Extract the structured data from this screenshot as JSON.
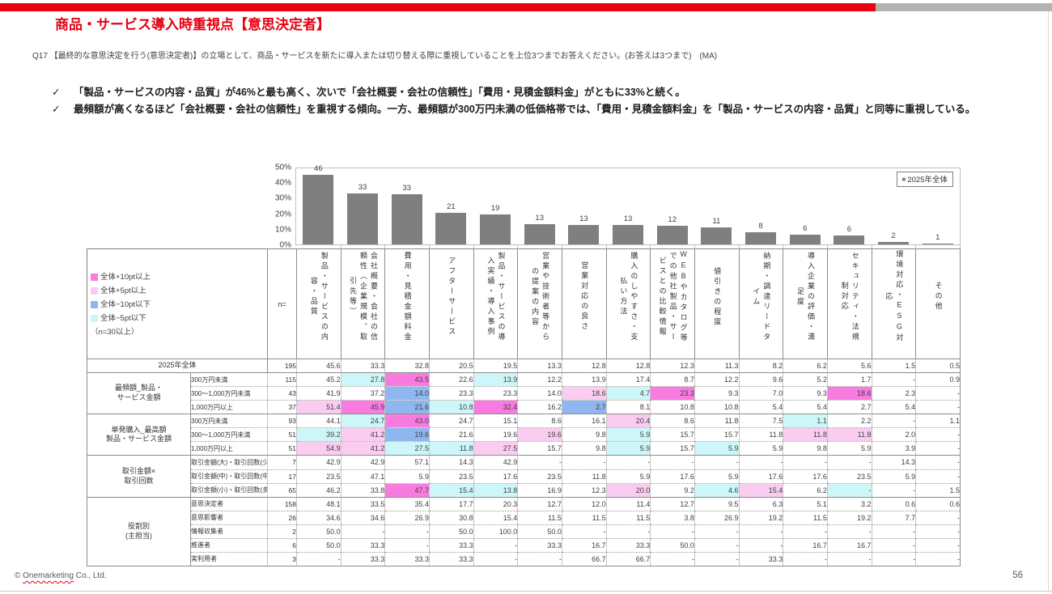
{
  "header": {
    "title": "商品・サービス導入時重視点【意思決定者】",
    "question": "Q17 【最終的な意思決定を行う(意思決定者)】の立場として、商品・サービスを新たに導入または切り替える際に重視していることを上位3つまでお答えください。(お答えは3つまで)　(MA)",
    "check_mark": "✓",
    "bullets": [
      "「製品・サービスの内容・品質」が46%と最も高く、次いで「会社概要・会社の信頼性」「費用・見積金額料金」がともに33%と続く。",
      "最頻額が高くなるほど「会社概要・会社の信頼性」を重視する傾向。一方、最頻額が300万円未満の低価格帯では、「費用・見積金額料金」を「製品・サービスの内容・品質」と同等に重視している。"
    ]
  },
  "chart_data": {
    "type": "bar",
    "title": "",
    "categories": [
      "製品・サービスの内容・品質",
      "会社概要・会社の信頼性（企業規模、取引先等）",
      "費用・見積金額料金",
      "アフターサービス",
      "製品・サービスの導入実績・導入事例",
      "営業や技術者等からの提案の内容",
      "営業対応の良さ",
      "購入のしやすさ・支払い方法",
      "WEBやカタログ等での他社製品・サービスとの比較情報",
      "値引きの程度",
      "納期・調達リードタイム",
      "導入企業の評価・満足度",
      "セキュリティ・法規制対応",
      "環境対応・ESG対応",
      "その他"
    ],
    "values": [
      45.6,
      33.3,
      32.8,
      20.5,
      19.5,
      13.3,
      12.8,
      12.8,
      12.3,
      11.3,
      8.2,
      6.2,
      5.6,
      1.5,
      0.5
    ],
    "labels": [
      "46",
      "33",
      "33",
      "21",
      "19",
      "13",
      "13",
      "13",
      "12",
      "11",
      "8",
      "6",
      "6",
      "2",
      "1"
    ],
    "xlabel": "",
    "ylabel": "",
    "ylim": [
      0,
      50
    ],
    "yticks": [
      "50%",
      "40%",
      "30%",
      "20%",
      "10%",
      "0%"
    ],
    "grid": false,
    "legend": "2025年全体",
    "legend_position": "top-right",
    "bar_color": "#7F7F7F"
  },
  "pt_legend": {
    "items": [
      {
        "label": "全体+10pt以上",
        "color": "#F87CE0"
      },
      {
        "label": "全体+5pt以上",
        "color": "#FACCF0"
      },
      {
        "label": "全体−10pt以下",
        "color": "#90B6F0"
      },
      {
        "label": "全体−5pt以下",
        "color": "#CDF6F8"
      }
    ],
    "note": "（n=30以上）"
  },
  "table": {
    "n_header": "n=",
    "columns": [
      "製品・サービスの内容・品質",
      "会社概要・会社の信頼性（企業規模、取引先等）",
      "費用・見積金額料金",
      "アフターサービス",
      "製品・サービスの導入実績・導入事例",
      "営業や技術者等からの提案の内容",
      "営業対応の良さ",
      "購入のしやすさ・支払い方法",
      "WEBやカタログ等での他社製品・サービスとの比較情報",
      "値引きの程度",
      "納期・調達リードタイム",
      "導入企業の評価・満足度",
      "セキュリティ・法規制対応",
      "環境対応・ESG対応",
      "その他"
    ],
    "overall": {
      "label": "2025年全体",
      "n": 195,
      "values": [
        45.6,
        33.3,
        32.8,
        20.5,
        19.5,
        13.3,
        12.8,
        12.8,
        12.3,
        11.3,
        8.2,
        6.2,
        5.6,
        1.5,
        0.5
      ]
    },
    "groups": [
      {
        "label": "最頻額_製品・\nサービス金額",
        "rows": [
          {
            "label": "300万円未満",
            "n": 115,
            "values": [
              45.2,
              27.8,
              43.5,
              22.6,
              13.9,
              12.2,
              13.9,
              17.4,
              8.7,
              12.2,
              9.6,
              5.2,
              1.7,
              null,
              0.9
            ]
          },
          {
            "label": "300〜1,000万円未満",
            "n": 43,
            "values": [
              41.9,
              37.2,
              14.0,
              23.3,
              23.3,
              14.0,
              18.6,
              4.7,
              23.3,
              9.3,
              7.0,
              9.3,
              18.6,
              2.3,
              null
            ]
          },
          {
            "label": "1,000万円以上",
            "n": 37,
            "values": [
              51.4,
              45.9,
              21.6,
              10.8,
              32.4,
              16.2,
              2.7,
              8.1,
              10.8,
              10.8,
              5.4,
              5.4,
              2.7,
              5.4,
              null
            ]
          }
        ]
      },
      {
        "label": "単発購入_最高額\n製品・サービス金額",
        "rows": [
          {
            "label": "300万円未満",
            "n": 93,
            "values": [
              44.1,
              24.7,
              43.0,
              24.7,
              15.1,
              8.6,
              16.1,
              20.4,
              8.6,
              11.8,
              7.5,
              1.1,
              2.2,
              null,
              1.1
            ]
          },
          {
            "label": "300〜1,000万円未満",
            "n": 51,
            "values": [
              39.2,
              41.2,
              19.6,
              21.6,
              19.6,
              19.6,
              9.8,
              5.9,
              15.7,
              15.7,
              11.8,
              11.8,
              11.8,
              2.0,
              null
            ]
          },
          {
            "label": "1,000万円以上",
            "n": 51,
            "values": [
              54.9,
              41.2,
              27.5,
              11.8,
              27.5,
              15.7,
              9.8,
              5.9,
              15.7,
              5.9,
              5.9,
              9.8,
              5.9,
              3.9,
              null
            ]
          }
        ]
      },
      {
        "label": "取引金額×\n取引回数",
        "rows": [
          {
            "label": "取引金額(大)・取引回数(少)",
            "n": 7,
            "values": [
              42.9,
              42.9,
              57.1,
              14.3,
              42.9,
              null,
              null,
              null,
              null,
              null,
              null,
              null,
              null,
              14.3,
              null
            ]
          },
          {
            "label": "取引金額(中)・取引回数(中)",
            "n": 17,
            "values": [
              23.5,
              47.1,
              5.9,
              23.5,
              17.6,
              23.5,
              11.8,
              5.9,
              17.6,
              5.9,
              17.6,
              17.6,
              23.5,
              5.9,
              null
            ]
          },
          {
            "label": "取引金額(小)・取引回数(多)",
            "n": 65,
            "values": [
              46.2,
              33.8,
              47.7,
              15.4,
              13.8,
              16.9,
              12.3,
              20.0,
              9.2,
              4.6,
              15.4,
              6.2,
              null,
              null,
              1.5
            ]
          }
        ]
      },
      {
        "label": "役割別\n(主担当)",
        "rows": [
          {
            "label": "意思決定者",
            "n": 158,
            "values": [
              48.1,
              33.5,
              35.4,
              17.7,
              20.3,
              12.7,
              12.0,
              11.4,
              12.7,
              9.5,
              6.3,
              5.1,
              3.2,
              0.6,
              0.6
            ]
          },
          {
            "label": "意思影響者",
            "n": 26,
            "values": [
              34.6,
              34.6,
              26.9,
              30.8,
              15.4,
              11.5,
              11.5,
              11.5,
              3.8,
              26.9,
              19.2,
              11.5,
              19.2,
              7.7,
              null
            ]
          },
          {
            "label": "情報収集者",
            "n": 2,
            "values": [
              50.0,
              null,
              null,
              50.0,
              100.0,
              50.0,
              null,
              null,
              null,
              null,
              null,
              null,
              null,
              null,
              null
            ]
          },
          {
            "label": "推進者",
            "n": 6,
            "values": [
              50.0,
              33.3,
              null,
              33.3,
              null,
              33.3,
              16.7,
              33.3,
              50.0,
              null,
              null,
              16.7,
              16.7,
              null,
              null
            ]
          },
          {
            "label": "実利用者",
            "n": 3,
            "values": [
              null,
              33.3,
              33.3,
              33.3,
              null,
              null,
              66.7,
              66.7,
              null,
              null,
              33.3,
              null,
              null,
              null,
              null
            ]
          }
        ]
      }
    ],
    "highlight_rule": {
      "min_n": 30,
      "plus10": "#F87CE0",
      "plus5": "#FACCF0",
      "minus10": "#90B6F0",
      "minus5": "#CDF6F8"
    }
  },
  "footer": {
    "copyright_pre": "© ",
    "copyright_word": "Onemarketing",
    "copyright_post": " Co., Ltd.",
    "page_number": "56"
  }
}
